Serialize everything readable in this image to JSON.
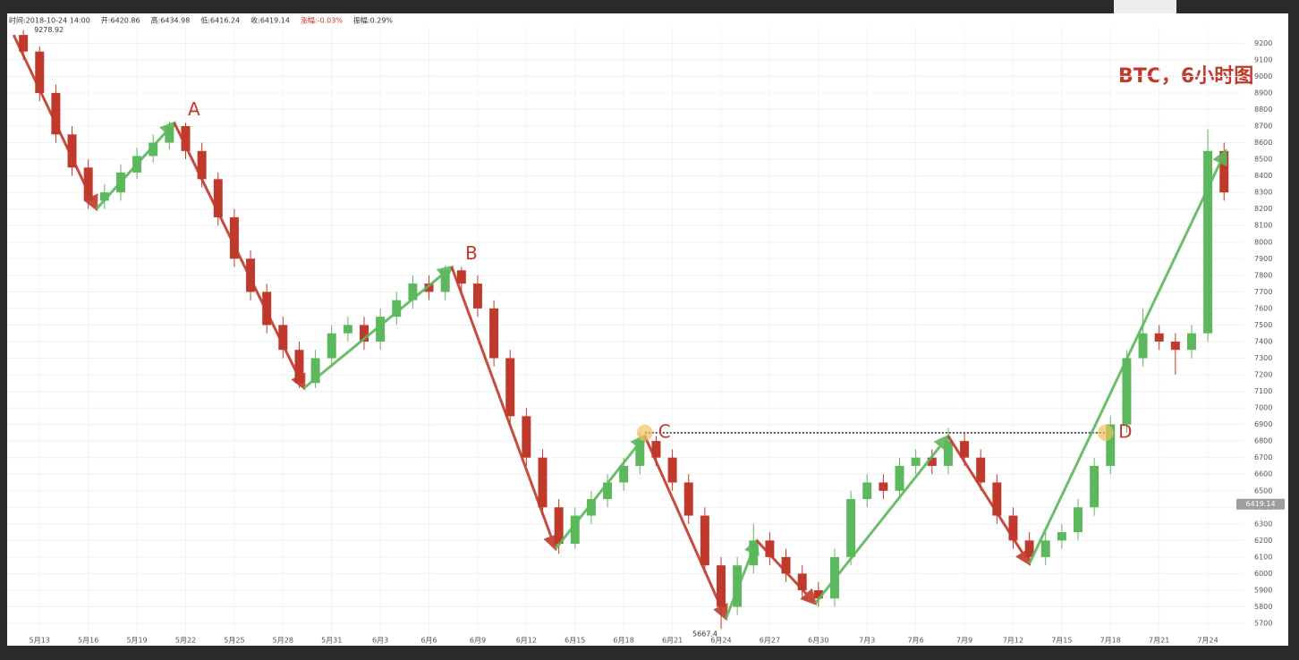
{
  "chart_data": {
    "type": "candlestick",
    "title": "BTC，6小时图",
    "header": [
      "时间:2018-10-24 14:00",
      "开:6420.86",
      "高:6434.98",
      "低:6416.24",
      "收:6419.14",
      "涨幅:-0.03%",
      "振幅:0.29%"
    ],
    "header_colors": [
      "#333",
      "#333",
      "#333",
      "#333",
      "#333",
      "#c0392b",
      "#333"
    ],
    "last_price": 6419.14,
    "up_color": "#5cb85c",
    "down_color": "#c0392b",
    "grid": true,
    "xlim": [
      -2,
      74.2
    ],
    "ylim": [
      5630,
      9380
    ],
    "xticks": [
      {
        "value": 0,
        "label": "5月13"
      },
      {
        "value": 3,
        "label": "5月16"
      },
      {
        "value": 6,
        "label": "5月19"
      },
      {
        "value": 9,
        "label": "5月22"
      },
      {
        "value": 12,
        "label": "5月25"
      },
      {
        "value": 15,
        "label": "5月28"
      },
      {
        "value": 18,
        "label": "5月31"
      },
      {
        "value": 21,
        "label": "6月3"
      },
      {
        "value": 24,
        "label": "6月6"
      },
      {
        "value": 27,
        "label": "6月9"
      },
      {
        "value": 30,
        "label": "6月12"
      },
      {
        "value": 33,
        "label": "6月15"
      },
      {
        "value": 36,
        "label": "6月18"
      },
      {
        "value": 39,
        "label": "6月21"
      },
      {
        "value": 42,
        "label": "6月24"
      },
      {
        "value": 45,
        "label": "6月27"
      },
      {
        "value": 48,
        "label": "6月30"
      },
      {
        "value": 51,
        "label": "7月3"
      },
      {
        "value": 54,
        "label": "7月6"
      },
      {
        "value": 57,
        "label": "7月9"
      },
      {
        "value": 60,
        "label": "7月12"
      },
      {
        "value": 63,
        "label": "7月15"
      },
      {
        "value": 66,
        "label": "7月18"
      },
      {
        "value": 69,
        "label": "7月21"
      },
      {
        "value": 72,
        "label": "7月24"
      }
    ],
    "yticks": [
      5700,
      5800,
      5900,
      6000,
      6100,
      6200,
      6300,
      6400,
      6500,
      6600,
      6700,
      6800,
      6900,
      7000,
      7100,
      7200,
      7300,
      7400,
      7500,
      7600,
      7700,
      7800,
      7900,
      8000,
      8100,
      8200,
      8300,
      8400,
      8500,
      8600,
      8700,
      8800,
      8900,
      9000,
      9100,
      9200
    ],
    "candles": {
      "x": [
        -1,
        0,
        1,
        2,
        3,
        4,
        5,
        6,
        7,
        8,
        9,
        10,
        11,
        12,
        13,
        14,
        15,
        16,
        17,
        18,
        19,
        20,
        21,
        22,
        23,
        24,
        25,
        26,
        27,
        28,
        29,
        30,
        31,
        32,
        33,
        34,
        35,
        36,
        37,
        38,
        39,
        40,
        41,
        42,
        43,
        44,
        45,
        46,
        47,
        48,
        49,
        50,
        51,
        52,
        53,
        54,
        55,
        56,
        57,
        58,
        59,
        60,
        61,
        62,
        63,
        64,
        65,
        66,
        67,
        68,
        69,
        70,
        71,
        72,
        73
      ],
      "open": [
        9250,
        9150,
        8900,
        8650,
        8450,
        8250,
        8300,
        8420,
        8520,
        8600,
        8700,
        8550,
        8380,
        8150,
        7900,
        7700,
        7500,
        7350,
        7150,
        7300,
        7450,
        7500,
        7400,
        7550,
        7650,
        7750,
        7700,
        7830,
        7750,
        7600,
        7300,
        6950,
        6700,
        6400,
        6180,
        6350,
        6450,
        6550,
        6650,
        6800,
        6700,
        6550,
        6350,
        6050,
        5800,
        6050,
        6200,
        6100,
        6000,
        5900,
        5850,
        6100,
        6450,
        6550,
        6500,
        6650,
        6700,
        6650,
        6800,
        6700,
        6550,
        6350,
        6200,
        6100,
        6200,
        6250,
        6400,
        6650,
        6900,
        7300,
        7450,
        7400,
        7350,
        7450,
        8550
      ],
      "close": [
        9150,
        8900,
        8650,
        8450,
        8250,
        8300,
        8420,
        8520,
        8600,
        8700,
        8550,
        8380,
        8150,
        7900,
        7700,
        7500,
        7350,
        7150,
        7300,
        7450,
        7500,
        7400,
        7550,
        7650,
        7750,
        7700,
        7830,
        7750,
        7600,
        7300,
        6950,
        6700,
        6400,
        6180,
        6350,
        6450,
        6550,
        6650,
        6800,
        6700,
        6550,
        6350,
        6050,
        5800,
        6050,
        6200,
        6100,
        6000,
        5900,
        5850,
        6100,
        6450,
        6550,
        6500,
        6650,
        6700,
        6650,
        6800,
        6700,
        6550,
        6350,
        6200,
        6100,
        6200,
        6250,
        6400,
        6650,
        6900,
        7300,
        7450,
        7400,
        7350,
        7450,
        8550,
        8300
      ],
      "high": [
        9278.92,
        9180,
        8950,
        8700,
        8500,
        8350,
        8470,
        8570,
        8650,
        8730,
        8720,
        8600,
        8420,
        8200,
        7950,
        7750,
        7550,
        7400,
        7350,
        7500,
        7550,
        7550,
        7600,
        7700,
        7800,
        7800,
        7860,
        7850,
        7800,
        7650,
        7350,
        7000,
        6750,
        6450,
        6400,
        6500,
        6600,
        6700,
        6850,
        6830,
        6750,
        6600,
        6400,
        6100,
        6100,
        6300,
        6250,
        6150,
        6050,
        5950,
        6150,
        6500,
        6600,
        6600,
        6700,
        6750,
        6750,
        6880,
        6850,
        6750,
        6600,
        6400,
        6250,
        6250,
        6300,
        6450,
        6700,
        6950,
        7350,
        7600,
        7500,
        7450,
        7500,
        8680,
        8600
      ],
      "low": [
        9100,
        8850,
        8600,
        8400,
        8200,
        8200,
        8250,
        8380,
        8480,
        8560,
        8500,
        8330,
        8100,
        7850,
        7650,
        7450,
        7300,
        7120,
        7120,
        7250,
        7400,
        7350,
        7350,
        7500,
        7600,
        7650,
        7650,
        7700,
        7550,
        7250,
        6900,
        6650,
        6350,
        6120,
        6150,
        6300,
        6400,
        6500,
        6600,
        6650,
        6500,
        6300,
        6000,
        5667.4,
        5750,
        6000,
        6050,
        5950,
        5850,
        5800,
        5800,
        6050,
        6400,
        6450,
        6450,
        6600,
        6600,
        6600,
        6650,
        6500,
        6300,
        6150,
        6050,
        6050,
        6150,
        6200,
        6350,
        6600,
        6850,
        7250,
        7350,
        7200,
        7300,
        7400,
        8250
      ]
    },
    "zigzag": {
      "x": [
        -1.6,
        3.5,
        8.3,
        16.3,
        25.4,
        31.8,
        37.3,
        42.3,
        44.2,
        47.8,
        56,
        61,
        73.1
      ],
      "y": [
        9250,
        8200,
        8720,
        7120,
        7850,
        6150,
        6830,
        5730,
        6200,
        5820,
        6830,
        6060,
        8550
      ]
    },
    "resistance": {
      "value": 6850,
      "x": [
        37.3,
        65.7
      ]
    },
    "points": [
      {
        "label": "A",
        "x": 8.3,
        "y": 8720
      },
      {
        "label": "B",
        "x": 25.4,
        "y": 7850
      },
      {
        "label": "C",
        "x": 37.3,
        "y": 6850
      },
      {
        "label": "D",
        "x": 65.7,
        "y": 6850
      }
    ]
  }
}
